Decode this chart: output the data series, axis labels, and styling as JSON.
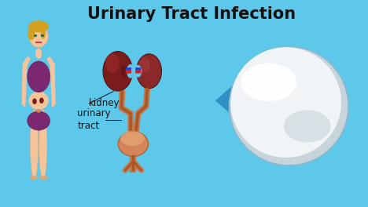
{
  "title": "Urinary Tract Infection",
  "title_fontsize": 15,
  "title_fontweight": "bold",
  "background_color": "#5DC8EA",
  "title_color": "#111111",
  "kidney_dark": "#5A1010",
  "kidney_mid": "#7B1C1C",
  "kidney_light": "#A03030",
  "bladder_color": "#D4855A",
  "bladder_light": "#E8A878",
  "tube_color": "#C87848",
  "tube_dark": "#A85828",
  "arrow_color": "#2E8BC0",
  "circle_edge": "#8AB8D0",
  "circle_inner": "#E8EDF0",
  "circle_white": "#FFFFFF",
  "label_color": "#111111",
  "label_fontsize": 8.5,
  "body_skin": "#F5C49A",
  "body_skin_shadow": "#E0A870",
  "body_outfit": "#7B2870",
  "body_outfit_dark": "#5A1850",
  "hair_color": "#D4A020",
  "red_band": "#CC2222",
  "blue_band": "#2244CC"
}
